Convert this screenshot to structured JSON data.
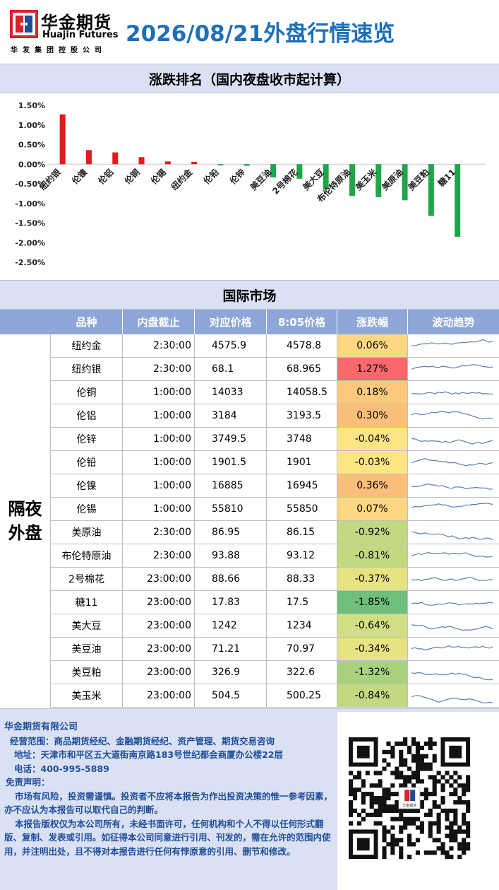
{
  "header": {
    "company_cn": "华金期货",
    "company_en": "Huajin Futures",
    "group": "华发集团控股公司",
    "title": "2026/08/21外盘行情速览"
  },
  "sections": {
    "ranking": "涨跌排名（国内夜盘收市起计算）",
    "market": "国际市场"
  },
  "colors": {
    "up": "#e31b1b",
    "down": "#1ea64a",
    "title": "#1d6fb8"
  },
  "chart_data": {
    "type": "bar",
    "categories": [
      "纽约银",
      "伦镍",
      "伦铝",
      "伦铜",
      "伦锡",
      "纽约金",
      "伦铅",
      "伦锌",
      "美豆油",
      "2号棉花",
      "美大豆",
      "布伦特原油",
      "美玉米",
      "美原油",
      "美豆粕",
      "糖11"
    ],
    "values": [
      1.27,
      0.36,
      0.3,
      0.18,
      0.07,
      0.06,
      -0.03,
      -0.04,
      -0.34,
      -0.37,
      -0.64,
      -0.81,
      -0.84,
      -0.92,
      -1.32,
      -1.85
    ],
    "y_ticks": [
      "1.50%",
      "1.00%",
      "0.50%",
      "0.00%",
      "-0.50%",
      "-1.00%",
      "-1.50%",
      "-2.00%",
      "-2.50%"
    ],
    "ylim": [
      -2.5,
      1.5
    ],
    "grid": false
  },
  "table": {
    "headers": [
      "品种",
      "内盘截止",
      "对应价格",
      "8:05价格",
      "涨跌幅",
      "波动趋势"
    ],
    "group_label": [
      "隔夜",
      "外盘"
    ],
    "rows": [
      {
        "name": "纽约金",
        "time": "2:30:00",
        "p1": "4575.9",
        "p2": "4578.8",
        "chg": "0.06%",
        "v": 0.06
      },
      {
        "name": "纽约银",
        "time": "2:30:00",
        "p1": "68.1",
        "p2": "68.965",
        "chg": "1.27%",
        "v": 1.27
      },
      {
        "name": "伦铜",
        "time": "1:00:00",
        "p1": "14033",
        "p2": "14058.5",
        "chg": "0.18%",
        "v": 0.18
      },
      {
        "name": "伦铝",
        "time": "1:00:00",
        "p1": "3184",
        "p2": "3193.5",
        "chg": "0.30%",
        "v": 0.3
      },
      {
        "name": "伦锌",
        "time": "1:00:00",
        "p1": "3749.5",
        "p2": "3748",
        "chg": "-0.04%",
        "v": -0.04
      },
      {
        "name": "伦铅",
        "time": "1:00:00",
        "p1": "1901.5",
        "p2": "1901",
        "chg": "-0.03%",
        "v": -0.03
      },
      {
        "name": "伦镍",
        "time": "1:00:00",
        "p1": "16885",
        "p2": "16945",
        "chg": "0.36%",
        "v": 0.36
      },
      {
        "name": "伦锡",
        "time": "1:00:00",
        "p1": "55810",
        "p2": "55850",
        "chg": "0.07%",
        "v": 0.07
      },
      {
        "name": "美原油",
        "time": "2:30:00",
        "p1": "86.95",
        "p2": "86.15",
        "chg": "-0.92%",
        "v": -0.92
      },
      {
        "name": "布伦特原油",
        "time": "2:30:00",
        "p1": "93.88",
        "p2": "93.12",
        "chg": "-0.81%",
        "v": -0.81
      },
      {
        "name": "2号棉花",
        "time": "23:00:00",
        "p1": "88.66",
        "p2": "88.33",
        "chg": "-0.37%",
        "v": -0.37
      },
      {
        "name": "糖11",
        "time": "23:00:00",
        "p1": "17.83",
        "p2": "17.5",
        "chg": "-1.85%",
        "v": -1.85
      },
      {
        "name": "美大豆",
        "time": "23:00:00",
        "p1": "1242",
        "p2": "1234",
        "chg": "-0.64%",
        "v": -0.64
      },
      {
        "name": "美豆油",
        "time": "23:00:00",
        "p1": "71.21",
        "p2": "70.97",
        "chg": "-0.34%",
        "v": -0.34
      },
      {
        "name": "美豆粕",
        "time": "23:00:00",
        "p1": "326.9",
        "p2": "322.6",
        "chg": "-1.32%",
        "v": -1.32
      },
      {
        "name": "美玉米",
        "time": "23:00:00",
        "p1": "504.5",
        "p2": "500.25",
        "chg": "-0.84%",
        "v": -0.84
      }
    ]
  },
  "footer": {
    "company": "华金期货有限公司",
    "scope": "经营范围：商品期货经纪、金融期货经纪、资产管理、期货交易咨询",
    "address": "地址：天津市和平区五大道街南京路183号世纪都会商厦办公楼22层",
    "phone": "电话：400-995-5889",
    "disclaimer_title": "免责声明：",
    "p1": "市场有风险，投资需谨慎。投资者不应将本报告为作出投资决策的惟一参考因素，亦不应认为本报告可以取代自己的判断。",
    "p2": "本报告版权仅为本公司所有，未经书面许可，任何机构和个人不得以任何形式翻版、复制、发表或引用。如征得本公司同意进行引用、刊发的，需在允许的范围内使用，并注明出处，且不得对本报告进行任何有悖原意的引用、删节和修改。",
    "qr_logo": "华金期货"
  }
}
